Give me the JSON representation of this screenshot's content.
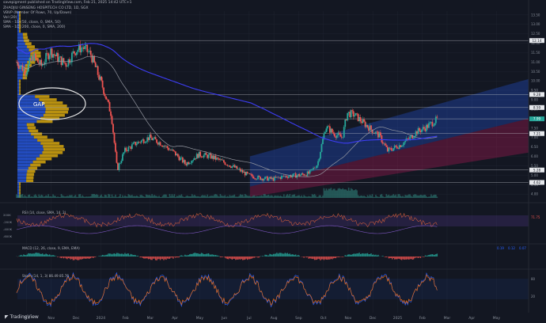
{
  "header": {
    "published": "savepigment published on TradingView.com, Feb 21, 2025 14:42 UTC+1",
    "symbol_line": "ZHAOJIU GINSENG HOSPITECH CO LTD, 1D, SGX",
    "indicators": [
      "VBVP (Number Of Rows, 70, Up/Down)",
      "Vol (20)",
      "SMA - 1D (50, close, 0, SMA, 50)",
      "SMA - 1D (200, close, 0, SMA, 200)"
    ]
  },
  "brand": "TradingView",
  "annotation": {
    "gap_label": "GAP"
  },
  "colors": {
    "background": "#131722",
    "sma50": "#9598a1",
    "sma200": "#3d3df5",
    "channel_upper": "#2962ff",
    "channel_lower": "#c2185b",
    "vp_up": "#2962ff",
    "vp_down": "#f0b90b",
    "price_label": "#26a69a"
  },
  "chart_data": [
    {
      "type": "candlestick",
      "title": "",
      "x": [
        "Oct",
        "Nov",
        "Dec",
        "2024",
        "Feb",
        "Mar",
        "Apr",
        "May",
        "Jun",
        "Jul",
        "Aug",
        "Sep",
        "Oct",
        "Nov",
        "Dec",
        "2025",
        "Feb",
        "Mar",
        "Apr",
        "May"
      ],
      "y_ticks": [
        4.0,
        4.5,
        5.0,
        5.5,
        6.0,
        6.5,
        7.0,
        7.5,
        8.0,
        8.5,
        9.0,
        9.5,
        10.0,
        10.5,
        11.0,
        11.5,
        12.0,
        12.5,
        13.0,
        13.5
      ],
      "ylim": [
        3.8,
        13.7
      ],
      "price_labels": [
        "12.14",
        "9.28",
        "8.59",
        "7.99",
        "7.21",
        "5.28",
        "4.62"
      ],
      "current_price": "7.99",
      "close_path": [
        [
          "Sep 20",
          11.0
        ],
        [
          "Oct 1",
          10.5
        ],
        [
          "Oct 10",
          11.3
        ],
        [
          "Oct 20",
          10.8
        ],
        [
          "Nov 1",
          11.6
        ],
        [
          "Nov 10",
          11.2
        ],
        [
          "Nov 20",
          10.9
        ],
        [
          "Dec 1",
          11.6
        ],
        [
          "Dec 10",
          11.8
        ],
        [
          "Dec 20",
          11.4
        ],
        [
          "Jan 5",
          9.6
        ],
        [
          "Jan 15",
          8.2
        ],
        [
          "Jan 22",
          5.3
        ],
        [
          "Feb 1",
          6.3
        ],
        [
          "Feb 15",
          6.7
        ],
        [
          "Mar 1",
          7.0
        ],
        [
          "Mar 15",
          6.7
        ],
        [
          "Apr 1",
          6.2
        ],
        [
          "Apr 15",
          5.6
        ],
        [
          "May 1",
          6.1
        ],
        [
          "May 15",
          6.0
        ],
        [
          "Jun 1",
          5.7
        ],
        [
          "Jun 15",
          5.4
        ],
        [
          "Jul 1",
          5.0
        ],
        [
          "Jul 15",
          4.85
        ],
        [
          "Aug 1",
          4.8
        ],
        [
          "Aug 15",
          4.95
        ],
        [
          "Sep 1",
          5.0
        ],
        [
          "Sep 15",
          5.1
        ],
        [
          "Sep 25",
          5.6
        ],
        [
          "Oct 5",
          7.6
        ],
        [
          "Oct 15",
          7.2
        ],
        [
          "Oct 25",
          7.0
        ],
        [
          "Nov 1",
          8.3
        ],
        [
          "Nov 10",
          8.2
        ],
        [
          "Nov 20",
          7.8
        ],
        [
          "Dec 1",
          7.4
        ],
        [
          "Dec 10",
          7.1
        ],
        [
          "Dec 20",
          6.3
        ],
        [
          "Jan 5",
          6.6
        ],
        [
          "Jan 15",
          6.9
        ],
        [
          "Jan 25",
          7.3
        ],
        [
          "Feb 5",
          7.5
        ],
        [
          "Feb 15",
          7.8
        ],
        [
          "Feb 21",
          7.99
        ]
      ]
    },
    {
      "type": "line",
      "title": "RSI (14, close, SMA, 14, 2)",
      "value_labels": [
        "71.75"
      ],
      "y_ticks": [
        "200K",
        "-200K",
        "-400K",
        "-600K"
      ]
    },
    {
      "type": "bar",
      "title": "MACD (12, 26, close, 9, EMA, EMA)",
      "value_labels": [
        "0.19",
        "0.12",
        "0.07"
      ]
    },
    {
      "type": "line",
      "title": "Stoch (14, 1, 3)",
      "value_labels": [
        "86.49",
        "85.76"
      ],
      "y_ticks": [
        80,
        20
      ]
    }
  ]
}
